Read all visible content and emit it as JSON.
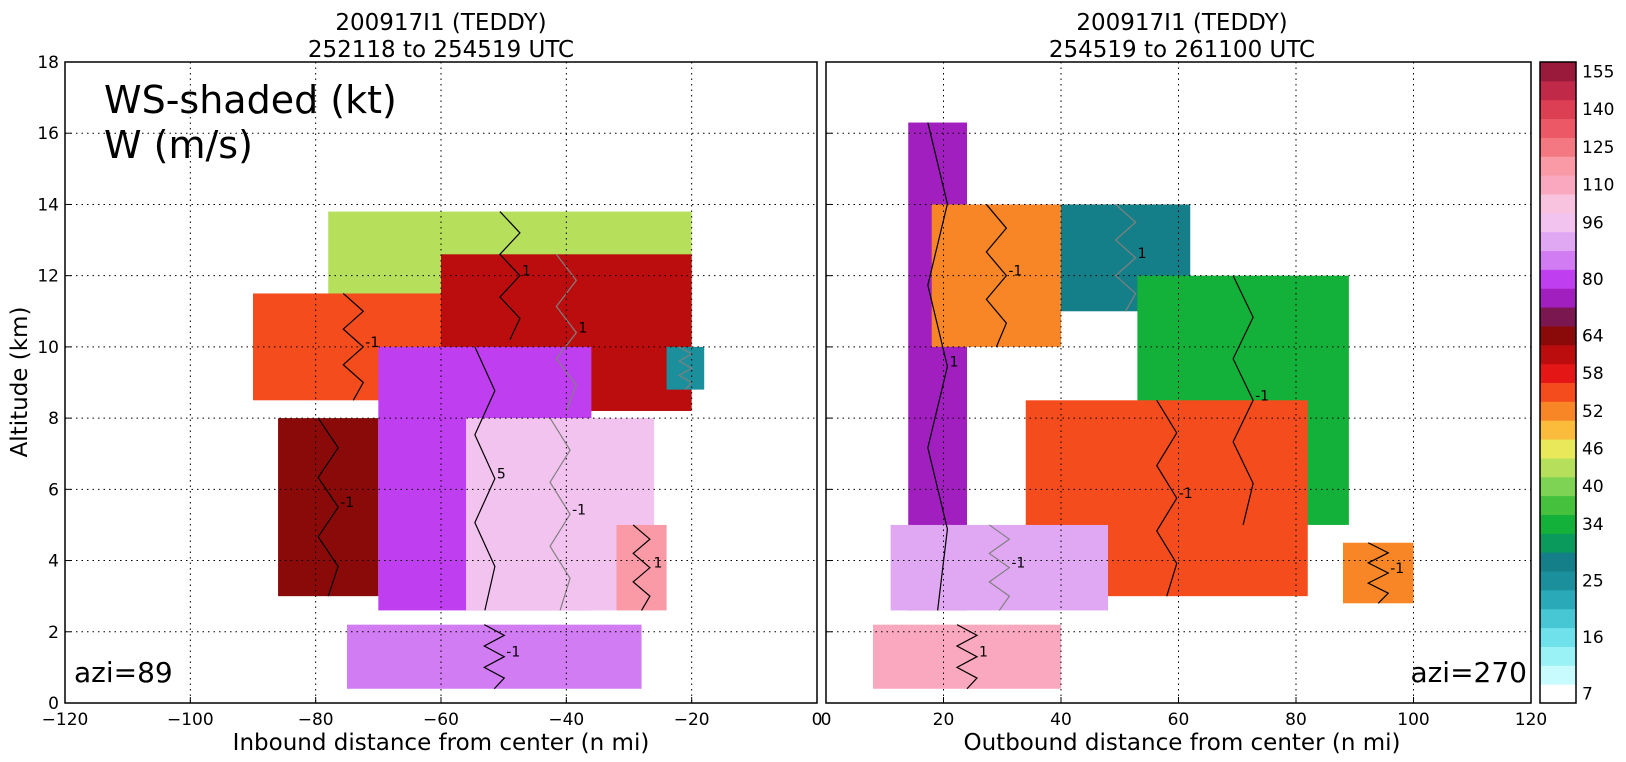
{
  "figure": {
    "left_title_line1": "200917I1 (TEDDY)",
    "left_title_line2": "252118 to 254519 UTC",
    "right_title_line1": "200917I1 (TEDDY)",
    "right_title_line2": "254519 to 261100 UTC",
    "legend_line1": "WS-shaded (kt)",
    "legend_line2": "W (m/s)",
    "left_azimuth": "azi=89",
    "right_azimuth": "azi=270"
  },
  "chart_data": [
    {
      "type": "heatmap",
      "panel": "inbound",
      "title": "200917I1 (TEDDY)\n252118 to 254519 UTC",
      "xlabel": "Inbound distance from center (n mi)",
      "ylabel": "Altitude (km)",
      "xlim": [
        -120,
        0
      ],
      "ylim": [
        0,
        18
      ],
      "x_ticks": [
        "−120",
        "−100",
        "−80",
        "−60",
        "−40",
        "−20",
        "0"
      ],
      "y_ticks": [
        "0",
        "2",
        "4",
        "6",
        "8",
        "10",
        "12",
        "14",
        "16",
        "18"
      ],
      "grid": true,
      "shaded_variable": "wind speed (kt)",
      "contour_variable": "vertical velocity (m/s)",
      "contour_labels": [
        "1",
        "-1",
        "1",
        "-1",
        "5",
        "-1",
        "1",
        "-1"
      ],
      "annotation": "azi=89",
      "regions": [
        {
          "x": [
            -78,
            -20
          ],
          "y": [
            10.2,
            13.8
          ],
          "ws": 45
        },
        {
          "x": [
            -90,
            -58
          ],
          "y": [
            8.5,
            11.5
          ],
          "ws": 57
        },
        {
          "x": [
            -60,
            -20
          ],
          "y": [
            8.2,
            12.6
          ],
          "ws": 63
        },
        {
          "x": [
            -86,
            -70
          ],
          "y": [
            3.0,
            8.0
          ],
          "ws": 68
        },
        {
          "x": [
            -70,
            -36
          ],
          "y": [
            2.6,
            10.0
          ],
          "ws": 82
        },
        {
          "x": [
            -56,
            -26
          ],
          "y": [
            2.6,
            8.0
          ],
          "ws": 100
        },
        {
          "x": [
            -32,
            -24
          ],
          "y": [
            2.6,
            5.0
          ],
          "ws": 120
        },
        {
          "x": [
            -75,
            -28
          ],
          "y": [
            0.4,
            2.2
          ],
          "ws": 88
        },
        {
          "x": [
            -24,
            -18
          ],
          "y": [
            8.8,
            10.0
          ],
          "ws": 25
        }
      ]
    },
    {
      "type": "heatmap",
      "panel": "outbound",
      "title": "200917I1 (TEDDY)\n254519 to 261100 UTC",
      "xlabel": "Outbound distance from center (n mi)",
      "ylabel": "",
      "xlim": [
        0,
        120
      ],
      "ylim": [
        0,
        18
      ],
      "x_ticks": [
        "0",
        "20",
        "40",
        "60",
        "80",
        "100",
        "120"
      ],
      "y_ticks": [
        "0",
        "2",
        "4",
        "6",
        "8",
        "10",
        "12",
        "14",
        "16",
        "18"
      ],
      "grid": true,
      "shaded_variable": "wind speed (kt)",
      "contour_variable": "vertical velocity (m/s)",
      "contour_labels": [
        "1",
        "-1",
        "1",
        "-1",
        "-1",
        "-1",
        "1",
        "-1"
      ],
      "annotation": "azi=270",
      "regions": [
        {
          "x": [
            14,
            24
          ],
          "y": [
            2.6,
            16.3
          ],
          "ws": 75
        },
        {
          "x": [
            18,
            40
          ],
          "y": [
            10.0,
            14.0
          ],
          "ws": 52
        },
        {
          "x": [
            40,
            62
          ],
          "y": [
            11.0,
            14.0
          ],
          "ws": 28
        },
        {
          "x": [
            53,
            89
          ],
          "y": [
            5.0,
            12.0
          ],
          "ws": 36
        },
        {
          "x": [
            34,
            82
          ],
          "y": [
            3.0,
            8.5
          ],
          "ws": 56
        },
        {
          "x": [
            11,
            48
          ],
          "y": [
            2.6,
            5.0
          ],
          "ws": 92
        },
        {
          "x": [
            8,
            40
          ],
          "y": [
            0.4,
            2.2
          ],
          "ws": 115
        },
        {
          "x": [
            88,
            100
          ],
          "y": [
            2.8,
            4.5
          ],
          "ws": 52
        }
      ]
    }
  ],
  "colorbar": {
    "labels": [
      "7",
      "16",
      "25",
      "34",
      "40",
      "46",
      "52",
      "58",
      "64",
      "80",
      "96",
      "110",
      "125",
      "140",
      "155"
    ],
    "levels": [
      {
        "ws": 7,
        "color": "#ffffff"
      },
      {
        "ws": 10,
        "color": "#c8fbfd"
      },
      {
        "ws": 13,
        "color": "#9af1f6"
      },
      {
        "ws": 16,
        "color": "#6ee1ea"
      },
      {
        "ws": 19,
        "color": "#47c6d4"
      },
      {
        "ws": 22,
        "color": "#2aa9b9"
      },
      {
        "ws": 25,
        "color": "#1c8f9c"
      },
      {
        "ws": 28,
        "color": "#147f88"
      },
      {
        "ws": 31,
        "color": "#0a9a5c"
      },
      {
        "ws": 34,
        "color": "#14b13a"
      },
      {
        "ws": 37,
        "color": "#46c13e"
      },
      {
        "ws": 40,
        "color": "#7ed254"
      },
      {
        "ws": 43,
        "color": "#b6e05c"
      },
      {
        "ws": 46,
        "color": "#e8e85a"
      },
      {
        "ws": 49,
        "color": "#fbbc3c"
      },
      {
        "ws": 52,
        "color": "#f88626"
      },
      {
        "ws": 55,
        "color": "#f44c1c"
      },
      {
        "ws": 58,
        "color": "#e41616"
      },
      {
        "ws": 61,
        "color": "#bb0d0d"
      },
      {
        "ws": 64,
        "color": "#8a0a0a"
      },
      {
        "ws": 70,
        "color": "#7a1650"
      },
      {
        "ws": 75,
        "color": "#a01fbe"
      },
      {
        "ws": 80,
        "color": "#bf3ff0"
      },
      {
        "ws": 85,
        "color": "#d17cf3"
      },
      {
        "ws": 90,
        "color": "#e0a7f3"
      },
      {
        "ws": 96,
        "color": "#f3c3f0"
      },
      {
        "ws": 103,
        "color": "#f8c3df"
      },
      {
        "ws": 110,
        "color": "#f9a8c0"
      },
      {
        "ws": 117,
        "color": "#f99aa6"
      },
      {
        "ws": 125,
        "color": "#f47882"
      },
      {
        "ws": 132,
        "color": "#ec5866"
      },
      {
        "ws": 140,
        "color": "#dc3e54"
      },
      {
        "ws": 147,
        "color": "#c02a48"
      },
      {
        "ws": 155,
        "color": "#9a1a3c"
      }
    ]
  }
}
